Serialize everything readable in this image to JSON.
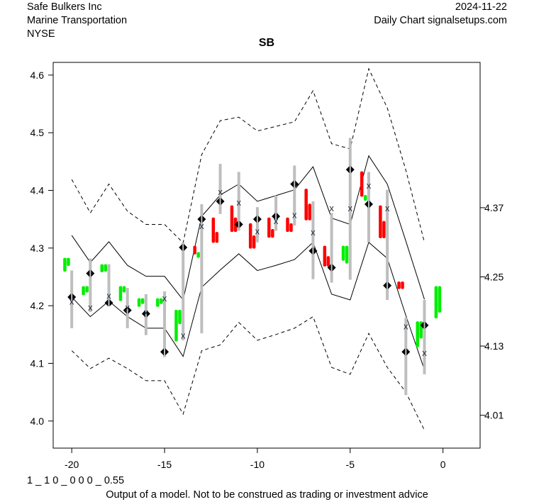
{
  "header": {
    "company": "Safe Bulkers Inc",
    "sector": "Marine Transportation",
    "exchange": "NYSE",
    "date": "2024-11-22",
    "source": "Daily Chart signalsetups.com"
  },
  "footer": {
    "code": "1 _ 1 0 _ 0 0 0 _ 0.55",
    "disclaimer": "Output of a model. Not to be construed as trading or investment advice"
  },
  "colors": {
    "up": "#00ee00",
    "down": "#ff0000",
    "range": "#bebebe",
    "line": "#000000"
  },
  "chart_data": {
    "type": "line",
    "title": "SB",
    "xlim": [
      -21,
      2
    ],
    "ylim": [
      3.953,
      4.622
    ],
    "x_ticks": [
      -20,
      -15,
      -10,
      -5,
      0
    ],
    "x_tick_labels": [
      "-20",
      "-15",
      "-10",
      "-5",
      "0"
    ],
    "y_ticks": [
      4.0,
      4.1,
      4.2,
      4.3,
      4.4,
      4.5,
      4.6
    ],
    "y_tick_labels": [
      "4.0",
      "4.1",
      "4.2",
      "4.3",
      "4.4",
      "4.5",
      "4.6"
    ],
    "y2_ticks": [
      4.01,
      4.13,
      4.25,
      4.37
    ],
    "y2_tick_labels": [
      "4.01",
      "4.13",
      "4.25",
      "4.37"
    ],
    "x": [
      -20,
      -19,
      -18,
      -17,
      -16,
      -15,
      -14,
      -13,
      -12,
      -11,
      -10,
      -9,
      -8,
      -7,
      -6,
      -5,
      -4,
      -3,
      -2,
      -1
    ],
    "upper_band": [
      4.322,
      4.275,
      4.311,
      4.27,
      4.251,
      4.251,
      4.21,
      4.355,
      4.392,
      4.411,
      4.381,
      4.391,
      4.401,
      4.441,
      4.352,
      4.341,
      4.46,
      4.411,
      4.312,
      4.211
    ],
    "lower_band": [
      4.215,
      4.181,
      4.208,
      4.181,
      4.161,
      4.161,
      4.112,
      4.232,
      4.262,
      4.29,
      4.261,
      4.27,
      4.28,
      4.31,
      4.22,
      4.21,
      4.31,
      4.282,
      4.183,
      4.089
    ],
    "upper_outer": [
      4.419,
      4.361,
      4.411,
      4.364,
      4.341,
      4.341,
      4.309,
      4.462,
      4.521,
      4.527,
      4.503,
      4.511,
      4.519,
      4.573,
      4.481,
      4.472,
      4.611,
      4.543,
      4.435,
      4.31
    ],
    "lower_outer": [
      4.122,
      4.091,
      4.109,
      4.091,
      4.07,
      4.07,
      4.012,
      4.122,
      4.132,
      4.171,
      4.14,
      4.15,
      4.161,
      4.181,
      4.093,
      4.081,
      4.152,
      4.093,
      4.05,
      3.984
    ],
    "range_low": [
      4.161,
      4.189,
      4.199,
      4.161,
      4.149,
      4.111,
      4.14,
      4.152,
      4.359,
      4.33,
      4.31,
      4.33,
      4.339,
      4.246,
      4.24,
      4.245,
      4.31,
      4.21,
      4.045,
      4.081
    ],
    "range_high": [
      4.261,
      4.282,
      4.272,
      4.231,
      4.22,
      4.225,
      4.31,
      4.376,
      4.446,
      4.432,
      4.371,
      4.391,
      4.443,
      4.381,
      4.361,
      4.491,
      4.432,
      4.401,
      4.179,
      4.21
    ],
    "diamond": [
      4.215,
      4.256,
      4.205,
      4.192,
      4.186,
      4.12,
      4.301,
      4.35,
      4.381,
      4.341,
      4.35,
      4.355,
      4.411,
      4.295,
      4.266,
      4.436,
      4.376,
      4.235,
      4.12,
      4.166
    ],
    "x_marker": [
      4.208,
      4.198,
      4.218,
      4.198,
      4.189,
      4.214,
      4.149,
      4.339,
      4.398,
      4.38,
      4.33,
      4.348,
      4.358,
      4.328,
      4.37,
      4.37,
      4.409,
      4.37,
      4.165,
      4.119
    ],
    "candles": [
      {
        "x": -20,
        "b1": [
          4.259,
          4.283
        ],
        "c1": "up",
        "b2": [
          4.269,
          4.283
        ],
        "c2": "up"
      },
      {
        "x": -19,
        "b1": [
          4.218,
          4.234
        ],
        "c1": "up",
        "b2": [
          4.223,
          4.234
        ],
        "c2": "up"
      },
      {
        "x": -18,
        "b1": [
          4.258,
          4.272
        ],
        "c1": "up",
        "b2": [
          4.259,
          4.272
        ],
        "c2": "up"
      },
      {
        "x": -17,
        "b1": [
          4.208,
          4.234
        ],
        "c1": "up",
        "b2": [
          4.223,
          4.234
        ],
        "c2": "up"
      },
      {
        "x": -16,
        "b1": [
          4.198,
          4.213
        ],
        "c1": "up",
        "b2": [
          4.203,
          4.213
        ],
        "c2": "up"
      },
      {
        "x": -15,
        "b1": [
          4.198,
          4.213
        ],
        "c1": "up",
        "b2": [
          4.203,
          4.213
        ],
        "c2": "up"
      },
      {
        "x": -14,
        "b1": [
          4.138,
          4.193
        ],
        "c1": "up",
        "b2": [
          4.168,
          4.193
        ],
        "c2": "up"
      },
      {
        "x": -13,
        "b1": [
          4.289,
          4.304
        ],
        "c1": "down",
        "b2": [
          4.283,
          4.293
        ],
        "c2": "up"
      },
      {
        "x": -12,
        "b1": [
          4.309,
          4.353
        ],
        "c1": "down",
        "b2": [
          4.309,
          4.328
        ],
        "c2": "down"
      },
      {
        "x": -11,
        "b1": [
          4.328,
          4.374
        ],
        "c1": "down",
        "b2": [
          4.328,
          4.353
        ],
        "c2": "down"
      },
      {
        "x": -10,
        "b1": [
          4.299,
          4.343
        ],
        "c1": "down",
        "b2": [
          4.299,
          4.322
        ],
        "c2": "down"
      },
      {
        "x": -9,
        "b1": [
          4.318,
          4.353
        ],
        "c1": "down",
        "b2": [
          4.318,
          4.333
        ],
        "c2": "down"
      },
      {
        "x": -8,
        "b1": [
          4.328,
          4.353
        ],
        "c1": "down",
        "b2": [
          4.328,
          4.343
        ],
        "c2": "down"
      },
      {
        "x": -7,
        "b1": [
          4.348,
          4.403
        ],
        "c1": "down",
        "b2": [
          4.348,
          4.377
        ],
        "c2": "down"
      },
      {
        "x": -6,
        "b1": [
          4.268,
          4.304
        ],
        "c1": "down",
        "b2": [
          4.268,
          4.286
        ],
        "c2": "down"
      },
      {
        "x": -5,
        "b1": [
          4.278,
          4.304
        ],
        "c1": "up",
        "b2": [
          4.273,
          4.304
        ],
        "c2": "up"
      },
      {
        "x": -4,
        "b1": [
          4.389,
          4.433
        ],
        "c1": "down",
        "b2": [
          4.382,
          4.392
        ],
        "c2": "up"
      },
      {
        "x": -3,
        "b1": [
          4.317,
          4.374
        ],
        "c1": "down",
        "b2": [
          4.317,
          4.347
        ],
        "c2": "down"
      },
      {
        "x": -2,
        "b1": [
          4.229,
          4.242
        ],
        "c1": "down",
        "b2": [
          4.229,
          4.242
        ],
        "c2": "down"
      },
      {
        "x": -1,
        "b1": [
          4.128,
          4.173
        ],
        "c1": "up",
        "b2": [
          4.143,
          4.173
        ],
        "c2": "up"
      },
      {
        "x": 0,
        "b1": [
          4.178,
          4.234
        ],
        "c1": "up",
        "b2": [
          4.188,
          4.234
        ],
        "c2": "up"
      }
    ]
  }
}
